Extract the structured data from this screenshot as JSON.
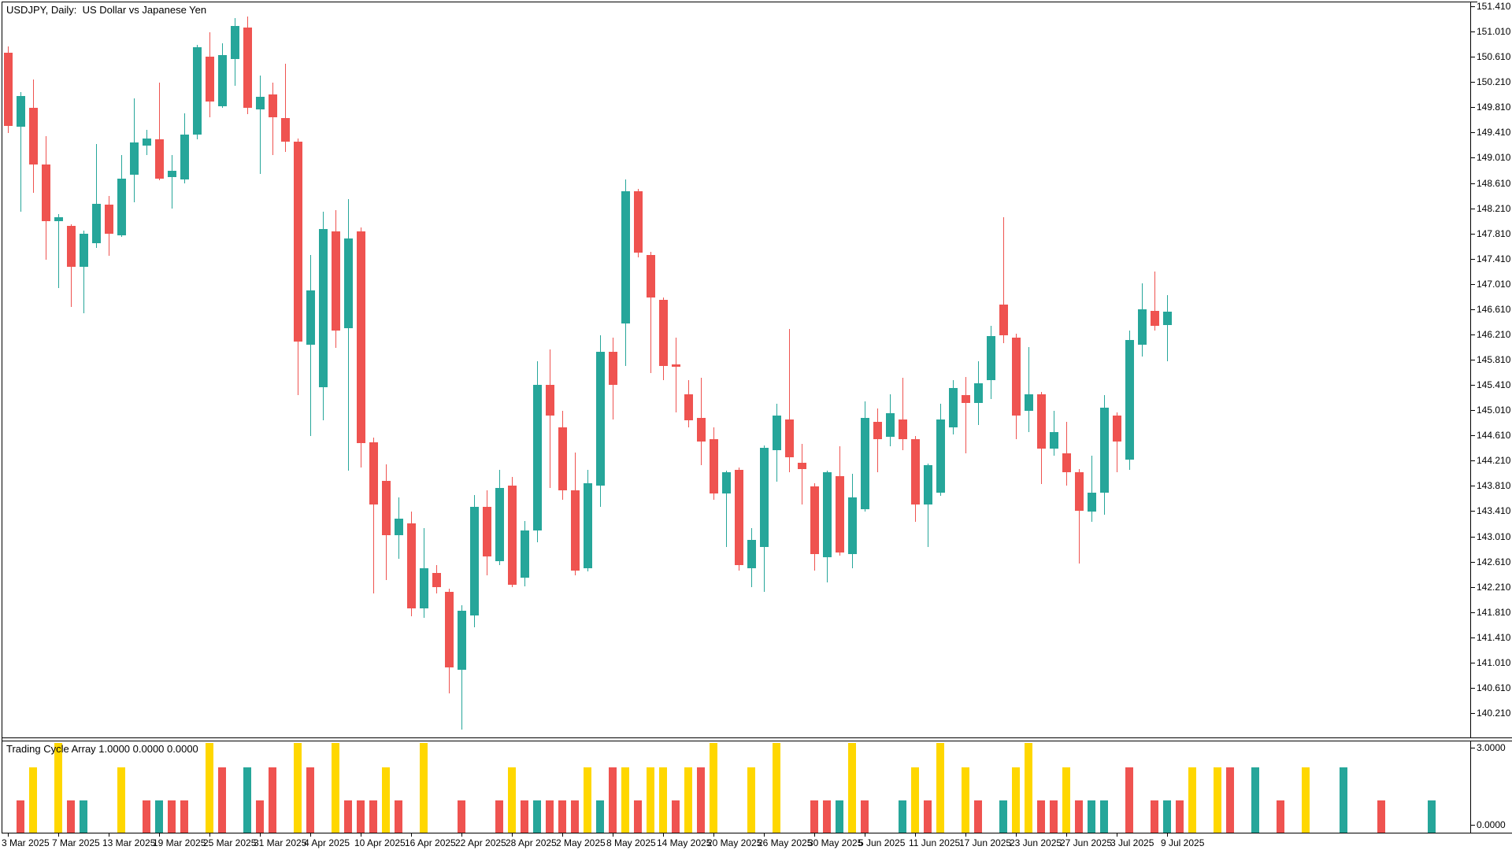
{
  "header": {
    "title": "USDJPY, Daily:  US Dollar vs Japanese Yen"
  },
  "chart_data": {
    "type": "candlestick",
    "title": "USDJPY, Daily:  US Dollar vs Japanese Yen",
    "symbol": "USDJPY",
    "period": "Daily",
    "description": "US Dollar vs Japanese Yen",
    "grid": false,
    "legend": false,
    "colors": {
      "bull": "#26a69a",
      "bear": "#ef5350",
      "cycle_yellow": "#ffd700",
      "axis_text": "#000000",
      "background": "#ffffff",
      "frame": "#000000"
    },
    "price_axis": {
      "max": 151.41,
      "min": 140.21,
      "step": 0.4,
      "labels": [
        "151.410",
        "151.010",
        "150.610",
        "150.210",
        "149.810",
        "149.410",
        "149.010",
        "148.610",
        "148.210",
        "147.810",
        "147.410",
        "147.010",
        "146.610",
        "146.210",
        "145.810",
        "145.410",
        "145.010",
        "144.610",
        "144.210",
        "143.810",
        "143.410",
        "143.010",
        "142.610",
        "142.210",
        "141.810",
        "141.410",
        "141.010",
        "140.610",
        "140.210"
      ]
    },
    "time_axis": {
      "tick_candle_indices": [
        0,
        4,
        8,
        12,
        16,
        20,
        24,
        28,
        32,
        36,
        40,
        44,
        48,
        52,
        56,
        60,
        64,
        68,
        72,
        76,
        80,
        84,
        88,
        92
      ],
      "tick_labels": [
        "3 Mar 2025",
        "7 Mar 2025",
        "13 Mar 2025",
        "19 Mar 2025",
        "25 Mar 2025",
        "31 Mar 2025",
        "4 Apr 2025",
        "10 Apr 2025",
        "16 Apr 2025",
        "22 Apr 2025",
        "28 Apr 2025",
        "2 May 2025",
        "8 May 2025",
        "14 May 2025",
        "20 May 2025",
        "26 May 2025",
        "30 May 2025",
        "5 Jun 2025",
        "11 Jun 2025",
        "17 Jun 2025",
        "23 Jun 2025",
        "27 Jun 2025",
        "3 Jul 2025",
        "9 Jul 2025"
      ]
    },
    "candles": [
      [
        "2025-03-03",
        150.68,
        150.78,
        149.4,
        149.52
      ],
      [
        "2025-03-04",
        149.5,
        150.05,
        148.15,
        149.99
      ],
      [
        "2025-03-05",
        149.8,
        150.25,
        148.45,
        148.9
      ],
      [
        "2025-03-06",
        148.9,
        149.35,
        147.4,
        148.0
      ],
      [
        "2025-03-07",
        148.01,
        148.12,
        146.95,
        148.07
      ],
      [
        "2025-03-10",
        147.93,
        147.95,
        146.65,
        147.28
      ],
      [
        "2025-03-11",
        147.28,
        147.85,
        146.55,
        147.81
      ],
      [
        "2025-03-12",
        147.66,
        149.23,
        147.58,
        148.28
      ],
      [
        "2025-03-13",
        148.27,
        148.4,
        147.45,
        147.81
      ],
      [
        "2025-03-14",
        147.78,
        149.05,
        147.75,
        148.68
      ],
      [
        "2025-03-17",
        148.74,
        149.95,
        148.3,
        149.25
      ],
      [
        "2025-03-18",
        149.2,
        149.45,
        149.05,
        149.32
      ],
      [
        "2025-03-19",
        149.3,
        150.2,
        148.65,
        148.68
      ],
      [
        "2025-03-20",
        148.7,
        149.05,
        148.2,
        148.8
      ],
      [
        "2025-03-21",
        148.67,
        149.72,
        148.6,
        149.38
      ],
      [
        "2025-03-24",
        149.38,
        150.8,
        149.3,
        150.76
      ],
      [
        "2025-03-25",
        150.61,
        151.0,
        149.65,
        149.9
      ],
      [
        "2025-03-26",
        149.83,
        150.82,
        149.8,
        150.64
      ],
      [
        "2025-03-27",
        150.57,
        151.22,
        150.15,
        151.1
      ],
      [
        "2025-03-28",
        151.07,
        151.25,
        149.7,
        149.8
      ],
      [
        "2025-03-31",
        149.78,
        150.31,
        148.75,
        149.98
      ],
      [
        "2025-04-01",
        150.01,
        150.2,
        149.05,
        149.65
      ],
      [
        "2025-04-02",
        149.64,
        150.5,
        149.1,
        149.26
      ],
      [
        "2025-04-03",
        149.26,
        149.32,
        145.25,
        146.1
      ],
      [
        "2025-04-04",
        146.05,
        147.47,
        144.6,
        146.91
      ],
      [
        "2025-04-07",
        145.37,
        148.15,
        144.85,
        147.88
      ],
      [
        "2025-04-08",
        147.84,
        148.18,
        146.0,
        146.27
      ],
      [
        "2025-04-09",
        146.31,
        148.35,
        144.05,
        147.73
      ],
      [
        "2025-04-10",
        147.84,
        147.9,
        144.1,
        144.49
      ],
      [
        "2025-04-11",
        144.5,
        144.58,
        142.1,
        143.52
      ],
      [
        "2025-04-14",
        143.89,
        144.15,
        142.32,
        143.03
      ],
      [
        "2025-04-15",
        143.03,
        143.63,
        142.66,
        143.29
      ],
      [
        "2025-04-16",
        143.21,
        143.4,
        141.75,
        141.87
      ],
      [
        "2025-04-17",
        141.87,
        143.14,
        141.72,
        142.5
      ],
      [
        "2025-04-18",
        142.43,
        142.55,
        142.1,
        142.2
      ],
      [
        "2025-04-21",
        142.13,
        142.18,
        140.52,
        140.93
      ],
      [
        "2025-04-22",
        140.9,
        141.92,
        139.95,
        141.83
      ],
      [
        "2025-04-23",
        141.76,
        143.67,
        141.57,
        143.48
      ],
      [
        "2025-04-24",
        143.48,
        143.74,
        142.39,
        142.69
      ],
      [
        "2025-04-25",
        142.62,
        144.07,
        142.55,
        143.78
      ],
      [
        "2025-04-28",
        143.81,
        143.95,
        142.2,
        142.24
      ],
      [
        "2025-04-29",
        142.35,
        143.25,
        142.22,
        143.1
      ],
      [
        "2025-04-30",
        143.1,
        145.79,
        142.92,
        145.41
      ],
      [
        "2025-05-01",
        145.41,
        145.97,
        143.78,
        144.93
      ],
      [
        "2025-05-02",
        144.74,
        145.0,
        143.59,
        143.74
      ],
      [
        "2025-05-05",
        143.74,
        144.34,
        142.39,
        142.47
      ],
      [
        "2025-05-06",
        142.51,
        144.07,
        142.45,
        143.85
      ],
      [
        "2025-05-07",
        143.81,
        146.2,
        143.48,
        145.93
      ],
      [
        "2025-05-08",
        145.93,
        146.16,
        144.86,
        145.41
      ],
      [
        "2025-05-09",
        146.38,
        148.67,
        145.71,
        148.48
      ],
      [
        "2025-05-12",
        148.48,
        148.52,
        147.43,
        147.51
      ],
      [
        "2025-05-13",
        147.47,
        147.52,
        145.6,
        146.8
      ],
      [
        "2025-05-14",
        146.76,
        146.8,
        145.49,
        145.71
      ],
      [
        "2025-05-15",
        145.74,
        146.16,
        144.97,
        145.7
      ],
      [
        "2025-05-16",
        145.26,
        145.49,
        144.74,
        144.85
      ],
      [
        "2025-05-19",
        144.89,
        145.52,
        144.14,
        144.51
      ],
      [
        "2025-05-20",
        144.55,
        144.74,
        143.59,
        143.69
      ],
      [
        "2025-05-21",
        143.69,
        144.05,
        142.84,
        144.03
      ],
      [
        "2025-05-22",
        144.06,
        144.1,
        142.47,
        142.56
      ],
      [
        "2025-05-23",
        142.51,
        143.14,
        142.21,
        142.95
      ],
      [
        "2025-05-26",
        142.84,
        144.45,
        142.13,
        144.41
      ],
      [
        "2025-05-27",
        144.37,
        145.11,
        143.88,
        144.93
      ],
      [
        "2025-05-28",
        144.86,
        146.3,
        144.03,
        144.26
      ],
      [
        "2025-05-29",
        144.18,
        144.48,
        143.51,
        144.08
      ],
      [
        "2025-05-30",
        143.8,
        143.85,
        142.47,
        142.73
      ],
      [
        "2025-06-02",
        142.68,
        144.05,
        142.28,
        144.03
      ],
      [
        "2025-06-03",
        143.96,
        144.44,
        142.7,
        142.76
      ],
      [
        "2025-06-04",
        142.73,
        144.0,
        142.5,
        143.63
      ],
      [
        "2025-06-05",
        143.44,
        145.15,
        143.4,
        144.89
      ],
      [
        "2025-06-06",
        144.82,
        145.04,
        144.03,
        144.55
      ],
      [
        "2025-06-09",
        144.59,
        145.26,
        144.44,
        144.96
      ],
      [
        "2025-06-10",
        144.86,
        145.52,
        144.37,
        144.55
      ],
      [
        "2025-06-11",
        144.55,
        144.6,
        143.24,
        143.51
      ],
      [
        "2025-06-12",
        143.51,
        144.16,
        142.84,
        144.14
      ],
      [
        "2025-06-13",
        143.7,
        145.11,
        143.65,
        144.86
      ],
      [
        "2025-06-16",
        144.74,
        145.49,
        144.62,
        145.36
      ],
      [
        "2025-06-17",
        145.25,
        145.54,
        144.33,
        145.13
      ],
      [
        "2025-06-18",
        145.12,
        145.79,
        144.77,
        145.44
      ],
      [
        "2025-06-19",
        145.49,
        146.35,
        145.19,
        146.18
      ],
      [
        "2025-06-20",
        146.68,
        148.07,
        146.07,
        146.2
      ],
      [
        "2025-06-23",
        146.16,
        146.22,
        144.55,
        144.93
      ],
      [
        "2025-06-24",
        145.0,
        146.01,
        144.66,
        145.26
      ],
      [
        "2025-06-25",
        145.26,
        145.3,
        143.84,
        144.4
      ],
      [
        "2025-06-26",
        144.4,
        145.0,
        144.29,
        144.66
      ],
      [
        "2025-06-27",
        144.33,
        144.82,
        143.81,
        144.03
      ],
      [
        "2025-06-30",
        144.03,
        144.08,
        142.58,
        143.42
      ],
      [
        "2025-07-01",
        143.4,
        144.29,
        143.24,
        143.7
      ],
      [
        "2025-07-02",
        143.7,
        145.25,
        143.35,
        145.05
      ],
      [
        "2025-07-03",
        144.93,
        144.98,
        144.03,
        144.51
      ],
      [
        "2025-07-04",
        144.22,
        146.27,
        144.07,
        146.12
      ],
      [
        "2025-07-07",
        146.05,
        147.02,
        145.86,
        146.61
      ],
      [
        "2025-07-08",
        146.58,
        147.21,
        146.27,
        146.35
      ],
      [
        "2025-07-09",
        146.36,
        146.83,
        145.79,
        146.57
      ]
    ],
    "sub_chart": {
      "type": "bar",
      "title": "Trading Cycle Array 1.0000 0.0000 0.0000",
      "indicator_name": "Trading Cycle Array",
      "params_display": [
        "1.0000",
        "0.0000",
        "0.0000"
      ],
      "ylim": [
        0,
        3
      ],
      "scale_max_label": "3.0000",
      "scale_min_label": "0.0000",
      "note": "bars keyed by candle slot index; indices beyond 92 are future-projected slots; v=value 1..3; k=color key r/t/y",
      "bars": [
        [
          1,
          1,
          "r"
        ],
        [
          2,
          2,
          "y"
        ],
        [
          4,
          3,
          "y"
        ],
        [
          5,
          1,
          "r"
        ],
        [
          6,
          1,
          "t"
        ],
        [
          9,
          2,
          "y"
        ],
        [
          11,
          1,
          "r"
        ],
        [
          12,
          1,
          "t"
        ],
        [
          13,
          1,
          "r"
        ],
        [
          14,
          1,
          "r"
        ],
        [
          16,
          3,
          "y"
        ],
        [
          17,
          2,
          "r"
        ],
        [
          19,
          2,
          "t"
        ],
        [
          20,
          1,
          "r"
        ],
        [
          21,
          2,
          "r"
        ],
        [
          23,
          3,
          "y"
        ],
        [
          24,
          2,
          "r"
        ],
        [
          26,
          3,
          "y"
        ],
        [
          27,
          1,
          "r"
        ],
        [
          28,
          1,
          "r"
        ],
        [
          29,
          1,
          "r"
        ],
        [
          30,
          2,
          "y"
        ],
        [
          31,
          1,
          "r"
        ],
        [
          33,
          3,
          "y"
        ],
        [
          36,
          1,
          "r"
        ],
        [
          39,
          1,
          "r"
        ],
        [
          40,
          2,
          "y"
        ],
        [
          41,
          1,
          "r"
        ],
        [
          42,
          1,
          "t"
        ],
        [
          43,
          1,
          "r"
        ],
        [
          44,
          1,
          "r"
        ],
        [
          45,
          1,
          "r"
        ],
        [
          46,
          2,
          "y"
        ],
        [
          47,
          1,
          "t"
        ],
        [
          48,
          2,
          "r"
        ],
        [
          49,
          2,
          "y"
        ],
        [
          50,
          1,
          "r"
        ],
        [
          51,
          2,
          "y"
        ],
        [
          52,
          2,
          "y"
        ],
        [
          53,
          1,
          "r"
        ],
        [
          54,
          2,
          "y"
        ],
        [
          55,
          2,
          "r"
        ],
        [
          56,
          3,
          "y"
        ],
        [
          59,
          2,
          "y"
        ],
        [
          61,
          3,
          "y"
        ],
        [
          64,
          1,
          "r"
        ],
        [
          65,
          1,
          "r"
        ],
        [
          66,
          1,
          "t"
        ],
        [
          67,
          3,
          "y"
        ],
        [
          68,
          1,
          "r"
        ],
        [
          71,
          1,
          "t"
        ],
        [
          72,
          2,
          "y"
        ],
        [
          73,
          1,
          "r"
        ],
        [
          74,
          3,
          "y"
        ],
        [
          76,
          2,
          "y"
        ],
        [
          77,
          1,
          "r"
        ],
        [
          79,
          1,
          "t"
        ],
        [
          80,
          2,
          "y"
        ],
        [
          81,
          3,
          "y"
        ],
        [
          82,
          1,
          "r"
        ],
        [
          83,
          1,
          "r"
        ],
        [
          84,
          2,
          "y"
        ],
        [
          85,
          1,
          "r"
        ],
        [
          86,
          1,
          "t"
        ],
        [
          87,
          1,
          "t"
        ],
        [
          89,
          2,
          "r"
        ],
        [
          91,
          1,
          "r"
        ],
        [
          92,
          1,
          "t"
        ],
        [
          93,
          1,
          "r"
        ],
        [
          94,
          2,
          "y"
        ],
        [
          96,
          2,
          "y"
        ],
        [
          97,
          2,
          "r"
        ],
        [
          99,
          2,
          "t"
        ],
        [
          101,
          1,
          "r"
        ],
        [
          103,
          2,
          "y"
        ],
        [
          106,
          2,
          "t"
        ],
        [
          109,
          1,
          "r"
        ],
        [
          113,
          1,
          "t"
        ]
      ]
    }
  }
}
